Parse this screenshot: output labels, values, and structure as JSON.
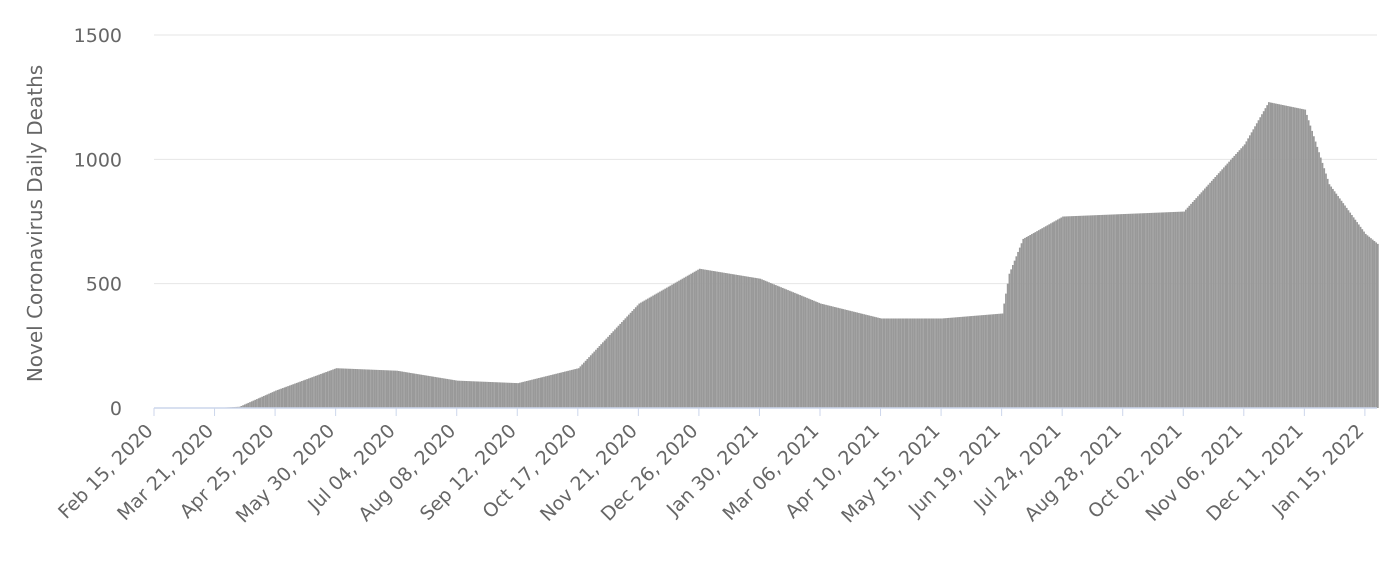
{
  "chart_data": {
    "type": "bar",
    "title": "",
    "xlabel": "",
    "ylabel": "Novel Coronavirus Daily Deaths",
    "ylim": [
      0,
      1500
    ],
    "yticks": [
      0,
      500,
      1000,
      1500
    ],
    "ytick_labels": [
      "0",
      "500",
      "1000",
      "1500"
    ],
    "x_range": [
      "2020-02-15",
      "2022-01-22"
    ],
    "xtick_labels": [
      "Feb 15, 2020",
      "Mar 21, 2020",
      "Apr 25, 2020",
      "May 30, 2020",
      "Jul 04, 2020",
      "Aug 08, 2020",
      "Sep 12, 2020",
      "Oct 17, 2020",
      "Nov 21, 2020",
      "Dec 26, 2020",
      "Jan 30, 2021",
      "Mar 06, 2021",
      "Apr 10, 2021",
      "May 15, 2021",
      "Jun 19, 2021",
      "Jul 24, 2021",
      "Aug 28, 2021",
      "Oct 02, 2021",
      "Nov 06, 2021",
      "Dec 11, 2021",
      "Jan 15, 2022"
    ],
    "grid": true,
    "bar_color": "#999999",
    "gridline_color": "#e6e6e6",
    "baseline_color": "#ccd6eb",
    "series": [
      {
        "x": [
          "2020-02-15",
          "2020-03-21",
          "2020-04-04",
          "2020-04-25",
          "2020-05-30",
          "2020-07-04",
          "2020-08-08",
          "2020-09-12",
          "2020-10-17",
          "2020-11-21",
          "2020-12-26",
          "2021-01-30",
          "2021-03-06",
          "2021-04-10",
          "2021-05-15",
          "2021-06-19",
          "2021-06-23",
          "2021-07-01",
          "2021-07-24",
          "2021-08-28",
          "2021-10-02",
          "2021-11-06",
          "2021-11-20",
          "2021-12-11",
          "2021-12-25",
          "2022-01-15",
          "2022-01-22"
        ],
        "values": [
          0,
          0,
          5,
          70,
          160,
          150,
          110,
          100,
          160,
          420,
          560,
          520,
          420,
          360,
          360,
          380,
          540,
          680,
          770,
          780,
          790,
          1060,
          1230,
          1200,
          900,
          700,
          660
        ]
      }
    ]
  }
}
